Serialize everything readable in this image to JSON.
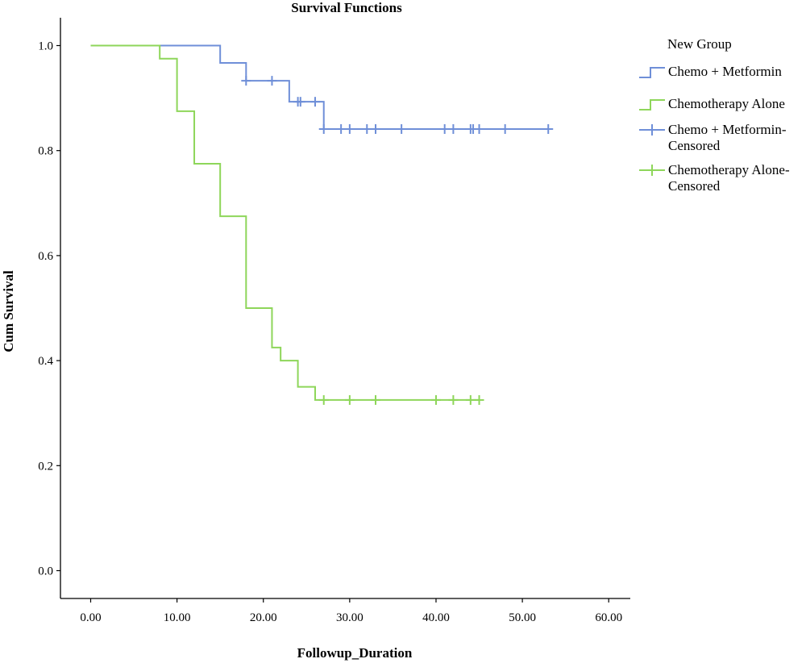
{
  "chart_data": {
    "type": "line",
    "title": "Survival Functions",
    "xlabel": "Followup_Duration",
    "ylabel": "Cum Survival",
    "xlim": [
      -3.5,
      62.5
    ],
    "ylim": [
      -0.053,
      1.053
    ],
    "x_ticks": [
      "0.00",
      "10.00",
      "20.00",
      "30.00",
      "40.00",
      "50.00",
      "60.00"
    ],
    "x_tick_values": [
      0,
      10,
      20,
      30,
      40,
      50,
      60
    ],
    "y_ticks": [
      "0.0",
      "0.2",
      "0.4",
      "0.6",
      "0.8",
      "1.0"
    ],
    "y_tick_values": [
      0.0,
      0.2,
      0.4,
      0.6,
      0.8,
      1.0
    ],
    "grid": false,
    "legend": {
      "title": "New Group",
      "placement": "top-right",
      "entries": [
        {
          "lines": [
            "Chemo + Metformin"
          ],
          "marker": "step",
          "color": "#6f8fd8"
        },
        {
          "lines": [
            "Chemotherapy Alone"
          ],
          "marker": "step",
          "color": "#8ed65a"
        },
        {
          "lines": [
            "Chemo + Metformin-",
            "Censored"
          ],
          "marker": "plus",
          "color": "#6f8fd8"
        },
        {
          "lines": [
            "Chemotherapy Alone-",
            "Censored"
          ],
          "marker": "plus",
          "color": "#8ed65a"
        }
      ]
    },
    "series": [
      {
        "name": "Chemo + Metformin",
        "color": "#6f8fd8",
        "steps": [
          [
            0,
            1.0
          ],
          [
            15,
            0.967
          ],
          [
            18,
            0.933
          ],
          [
            23,
            0.893
          ],
          [
            27,
            0.841
          ],
          [
            53,
            0.841
          ]
        ],
        "censored": [
          [
            18,
            0.933
          ],
          [
            21,
            0.933
          ],
          [
            24,
            0.893
          ],
          [
            24.3,
            0.893
          ],
          [
            26,
            0.893
          ],
          [
            27,
            0.841
          ],
          [
            29,
            0.841
          ],
          [
            30,
            0.841
          ],
          [
            32,
            0.841
          ],
          [
            33,
            0.841
          ],
          [
            36,
            0.841
          ],
          [
            41,
            0.841
          ],
          [
            42,
            0.841
          ],
          [
            44,
            0.841
          ],
          [
            44.3,
            0.841
          ],
          [
            45,
            0.841
          ],
          [
            48,
            0.841
          ],
          [
            53,
            0.841
          ]
        ]
      },
      {
        "name": "Chemotherapy Alone",
        "color": "#8ed65a",
        "steps": [
          [
            0,
            1.0
          ],
          [
            8,
            0.975
          ],
          [
            10,
            0.875
          ],
          [
            12,
            0.775
          ],
          [
            15,
            0.675
          ],
          [
            18,
            0.5
          ],
          [
            21,
            0.425
          ],
          [
            22,
            0.4
          ],
          [
            24,
            0.35
          ],
          [
            26,
            0.325
          ],
          [
            45,
            0.325
          ]
        ],
        "censored": [
          [
            27,
            0.325
          ],
          [
            30,
            0.325
          ],
          [
            33,
            0.325
          ],
          [
            40,
            0.325
          ],
          [
            42,
            0.325
          ],
          [
            44,
            0.325
          ],
          [
            45,
            0.325
          ]
        ]
      }
    ]
  }
}
